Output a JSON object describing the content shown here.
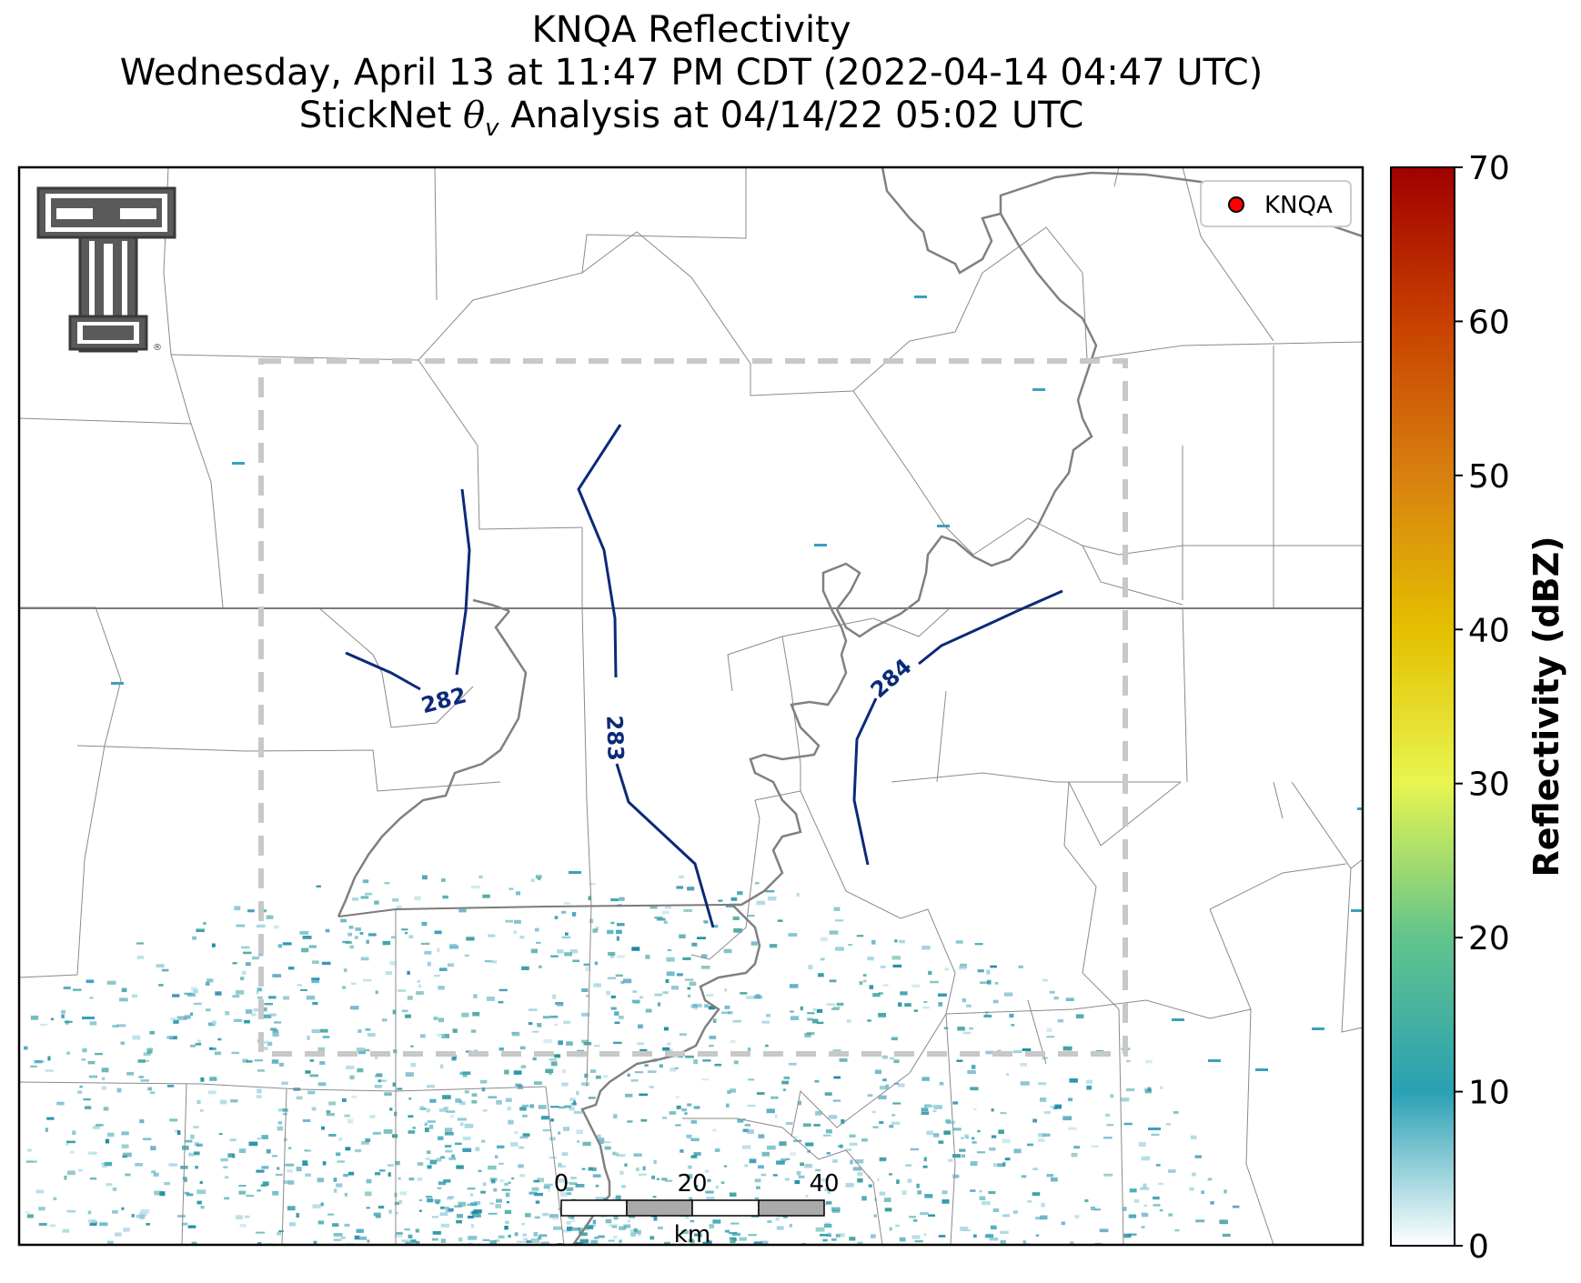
{
  "title": {
    "line1": "KNQA Reflectivity",
    "line2": "Wednesday, April 13 at 11:47 PM CDT (2022-04-14 04:47 UTC)",
    "line3_prefix": "StickNet ",
    "line3_theta": "θ",
    "line3_sub": "v",
    "line3_suffix": " Analysis at 04/14/22 05:02 UTC"
  },
  "legend": {
    "station": "KNQA",
    "marker_color": "#ff0000"
  },
  "logo": {
    "letter": "T",
    "mark": "®"
  },
  "colorbar": {
    "label": "Reflectivity (dBZ)",
    "ticks": [
      "0",
      "10",
      "20",
      "30",
      "40",
      "50",
      "60",
      "70"
    ],
    "colors": [
      "#ffffff",
      "#2aa0b4",
      "#62c48c",
      "#e8f550",
      "#e4c000",
      "#d88010",
      "#c84000",
      "#a00000"
    ]
  },
  "contours": {
    "color": "#0b2a78",
    "labels": [
      "282",
      "283",
      "284"
    ]
  },
  "scalebar": {
    "labels": [
      "0",
      "20",
      "40"
    ],
    "unit": "km"
  },
  "analysis_box_color": "#c8c8c8"
}
